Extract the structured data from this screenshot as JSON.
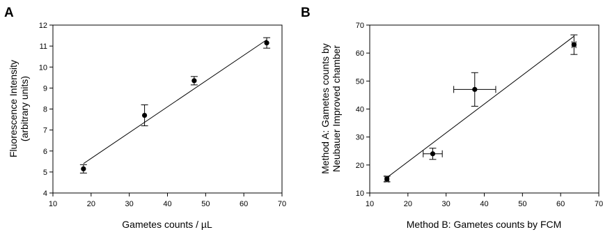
{
  "chart_data": [
    {
      "type": "scatter",
      "panel_label": "A",
      "xlabel": "Gametes counts / µL",
      "ylabel_lines": [
        "Fluorescence Intensity",
        "(arbitrary units)"
      ],
      "xlim": [
        10,
        70
      ],
      "ylim": [
        4,
        12
      ],
      "xticks": [
        "10",
        "20",
        "30",
        "40",
        "50",
        "60",
        "70"
      ],
      "yticks": [
        "4",
        "5",
        "6",
        "7",
        "8",
        "9",
        "10",
        "11",
        "12"
      ],
      "grid": false,
      "points": [
        {
          "x": 18,
          "y": 5.15,
          "yerr_low": 0.2,
          "yerr_high": 0.2
        },
        {
          "x": 34,
          "y": 7.7,
          "yerr_low": 0.5,
          "yerr_high": 0.5
        },
        {
          "x": 47,
          "y": 9.35,
          "yerr_low": 0.2,
          "yerr_high": 0.2
        },
        {
          "x": 66,
          "y": 11.15,
          "yerr_low": 0.25,
          "yerr_high": 0.25
        }
      ],
      "fit_line": {
        "x": [
          18,
          66
        ],
        "y": [
          5.4,
          11.3
        ]
      }
    },
    {
      "type": "scatter",
      "panel_label": "B",
      "xlabel": "Method B: Gametes counts by FCM",
      "ylabel_lines": [
        "Method A: Gametes counts by",
        "Neubauer Improved chamber"
      ],
      "xlim": [
        10,
        70
      ],
      "ylim": [
        10,
        70
      ],
      "xticks": [
        "10",
        "20",
        "30",
        "40",
        "50",
        "60",
        "70"
      ],
      "yticks": [
        "10",
        "20",
        "30",
        "40",
        "50",
        "60",
        "70"
      ],
      "grid": false,
      "points": [
        {
          "x": 14.5,
          "y": 15,
          "yerr_low": 1,
          "yerr_high": 1,
          "xerr_low": 0.5,
          "xerr_high": 0.5
        },
        {
          "x": 26.5,
          "y": 24,
          "yerr_low": 2,
          "yerr_high": 2,
          "xerr_low": 2.5,
          "xerr_high": 2.5
        },
        {
          "x": 37.5,
          "y": 47,
          "yerr_low": 6,
          "yerr_high": 6,
          "xerr_low": 5.5,
          "xerr_high": 5.5
        },
        {
          "x": 63.5,
          "y": 63,
          "yerr_low": 3.5,
          "yerr_high": 3.5,
          "xerr_low": 0.5,
          "xerr_high": 0.5
        }
      ],
      "fit_line": {
        "x": [
          14.5,
          63.5
        ],
        "y": [
          15.5,
          66
        ]
      }
    }
  ]
}
